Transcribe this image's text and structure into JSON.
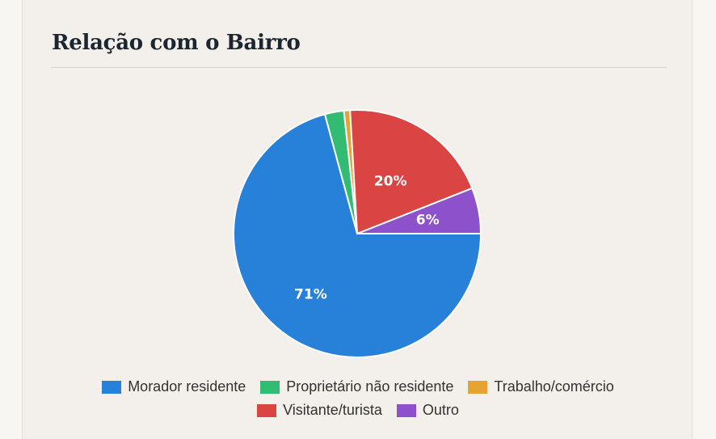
{
  "card": {
    "title": "Relação com o Bairro"
  },
  "chart_data": {
    "type": "pie",
    "series": [
      {
        "name": "Morador residente",
        "value": 71,
        "label": "71%",
        "color": "#2781d9"
      },
      {
        "name": "Proprietário não residente",
        "value": 2.5,
        "label": "",
        "color": "#32bb73"
      },
      {
        "name": "Trabalho/comércio",
        "value": 0.8,
        "label": "",
        "color": "#e7a234"
      },
      {
        "name": "Visitante/turista",
        "value": 20,
        "label": "20%",
        "color": "#da4544"
      },
      {
        "name": "Outro",
        "value": 6,
        "label": "6%",
        "color": "#8e51cc"
      }
    ],
    "legend_rows": [
      [
        0,
        1,
        2
      ],
      [
        3,
        4
      ]
    ],
    "legend_position": "bottom"
  }
}
